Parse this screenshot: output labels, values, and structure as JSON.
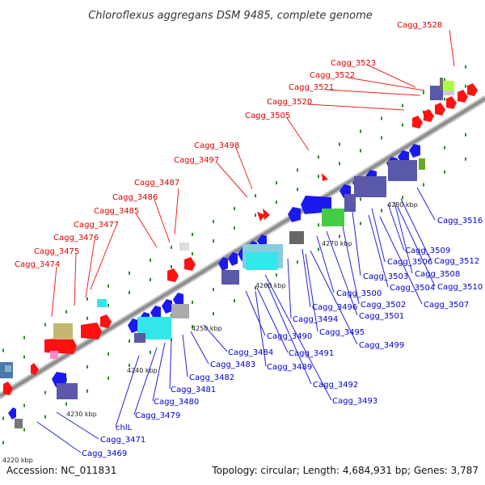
{
  "title": "Chloroflexus aggregans DSM 9485, complete genome",
  "footer": {
    "accession": "Accession: NC_011831",
    "topology": "Topology: circular; Length: 4,684,931 bp; Genes: 3,787"
  },
  "colors": {
    "forward_label": "#dd0000",
    "reverse_label": "#0000cc",
    "forward_gene": "#ff0000",
    "reverse_gene": "#1a1aee",
    "backbone": "#999999",
    "tick": "#228822"
  },
  "ticks": [
    {
      "label": "4220 kbp"
    },
    {
      "label": "4230 kbp"
    },
    {
      "label": "4240 kbp"
    },
    {
      "label": "4250 kbp"
    },
    {
      "label": "4260 kbp"
    },
    {
      "label": "4270 kbp"
    },
    {
      "label": "4280 kbp"
    }
  ],
  "forward_labels": [
    "Cagg_3528",
    "Cagg_3523",
    "Cagg_3522",
    "Cagg_3521",
    "Cagg_3520",
    "Cagg_3505",
    "Cagg_3498",
    "Cagg_3497",
    "Cagg_3487",
    "Cagg_3486",
    "Cagg_3485",
    "Cagg_3477",
    "Cagg_3476",
    "Cagg_3475",
    "Cagg_3474"
  ],
  "reverse_labels": [
    "Cagg_3516",
    "Cagg_3509",
    "Cagg_3512",
    "Cagg_3506",
    "Cagg_3508",
    "Cagg_3503",
    "Cagg_3510",
    "Cagg_3504",
    "Cagg_3500",
    "Cagg_3507",
    "Cagg_3502",
    "Cagg_3496",
    "Cagg_3501",
    "Cagg_3494",
    "Cagg_3495",
    "Cagg_3490",
    "Cagg_3499",
    "Cagg_3491",
    "Cagg_3484",
    "Cagg_3483",
    "Cagg_3489",
    "Cagg_3482",
    "Cagg_3481",
    "Cagg_3492",
    "Cagg_3480",
    "Cagg_3493",
    "Cagg_3479",
    "chlL",
    "Cagg_3471",
    "Cagg_3469"
  ]
}
